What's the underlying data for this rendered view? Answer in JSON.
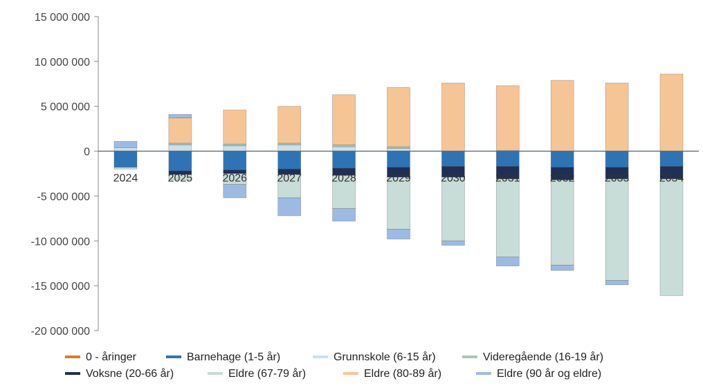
{
  "chart_data": {
    "type": "bar",
    "stacked": true,
    "categories": [
      "2024",
      "2025",
      "2026",
      "2027",
      "2028",
      "2029",
      "2030",
      "2031",
      "2032",
      "2033",
      "2034"
    ],
    "ylim": [
      -20000000,
      15000000
    ],
    "yticks": [
      15000000,
      10000000,
      5000000,
      0,
      -5000000,
      -10000000,
      -15000000,
      -20000000
    ],
    "ytick_labels": [
      "15 000 000",
      "10 000 000",
      "5 000 000",
      "0",
      "-5 000 000",
      "-10 000 000",
      "-15 000 000",
      "-20 000 000"
    ],
    "grid": false,
    "legend_position": "bottom",
    "series": [
      {
        "name": "0 - åringer",
        "color": "#e07b22",
        "values": [
          0,
          0,
          0,
          0,
          0,
          0,
          0,
          0,
          0,
          0,
          0
        ]
      },
      {
        "name": "Barnehage (1-5 år)",
        "color": "#2e74b5",
        "values": [
          -1800000,
          -2200000,
          -2100000,
          -2000000,
          -1900000,
          -1800000,
          -1700000,
          -1700000,
          -1800000,
          -1800000,
          -1700000
        ]
      },
      {
        "name": "Grunnskole (6-15 år)",
        "color": "#c9dfee",
        "values": [
          400000,
          700000,
          600000,
          700000,
          500000,
          300000,
          0,
          100000,
          0,
          0,
          0
        ]
      },
      {
        "name": "Videregående (16-19 år)",
        "color": "#a9c7b8",
        "values": [
          0,
          200000,
          200000,
          200000,
          200000,
          200000,
          0,
          0,
          0,
          0,
          0
        ]
      },
      {
        "name": "Voksne (20-66 år)",
        "color": "#1f2f55",
        "values": [
          0,
          -400000,
          -400000,
          -600000,
          -800000,
          -1100000,
          -1200000,
          -1400000,
          -1400000,
          -1300000,
          -1400000
        ]
      },
      {
        "name": "Eldre (67-79 år)",
        "color": "#c8dcd8",
        "values": [
          -200000,
          -600000,
          -1200000,
          -2600000,
          -3700000,
          -5800000,
          -7100000,
          -8700000,
          -9500000,
          -11300000,
          -13000000
        ]
      },
      {
        "name": "Eldre (80-89 år)",
        "color": "#f6c596",
        "values": [
          0,
          2800000,
          3800000,
          4100000,
          5600000,
          6600000,
          7600000,
          7200000,
          7900000,
          7600000,
          8600000
        ]
      },
      {
        "name": "Eldre (90 år og eldre)",
        "color": "#9dbbe2",
        "values": [
          700000,
          400000,
          -1500000,
          -2000000,
          -1400000,
          -1100000,
          -500000,
          -1000000,
          -600000,
          -500000,
          0
        ]
      }
    ]
  }
}
